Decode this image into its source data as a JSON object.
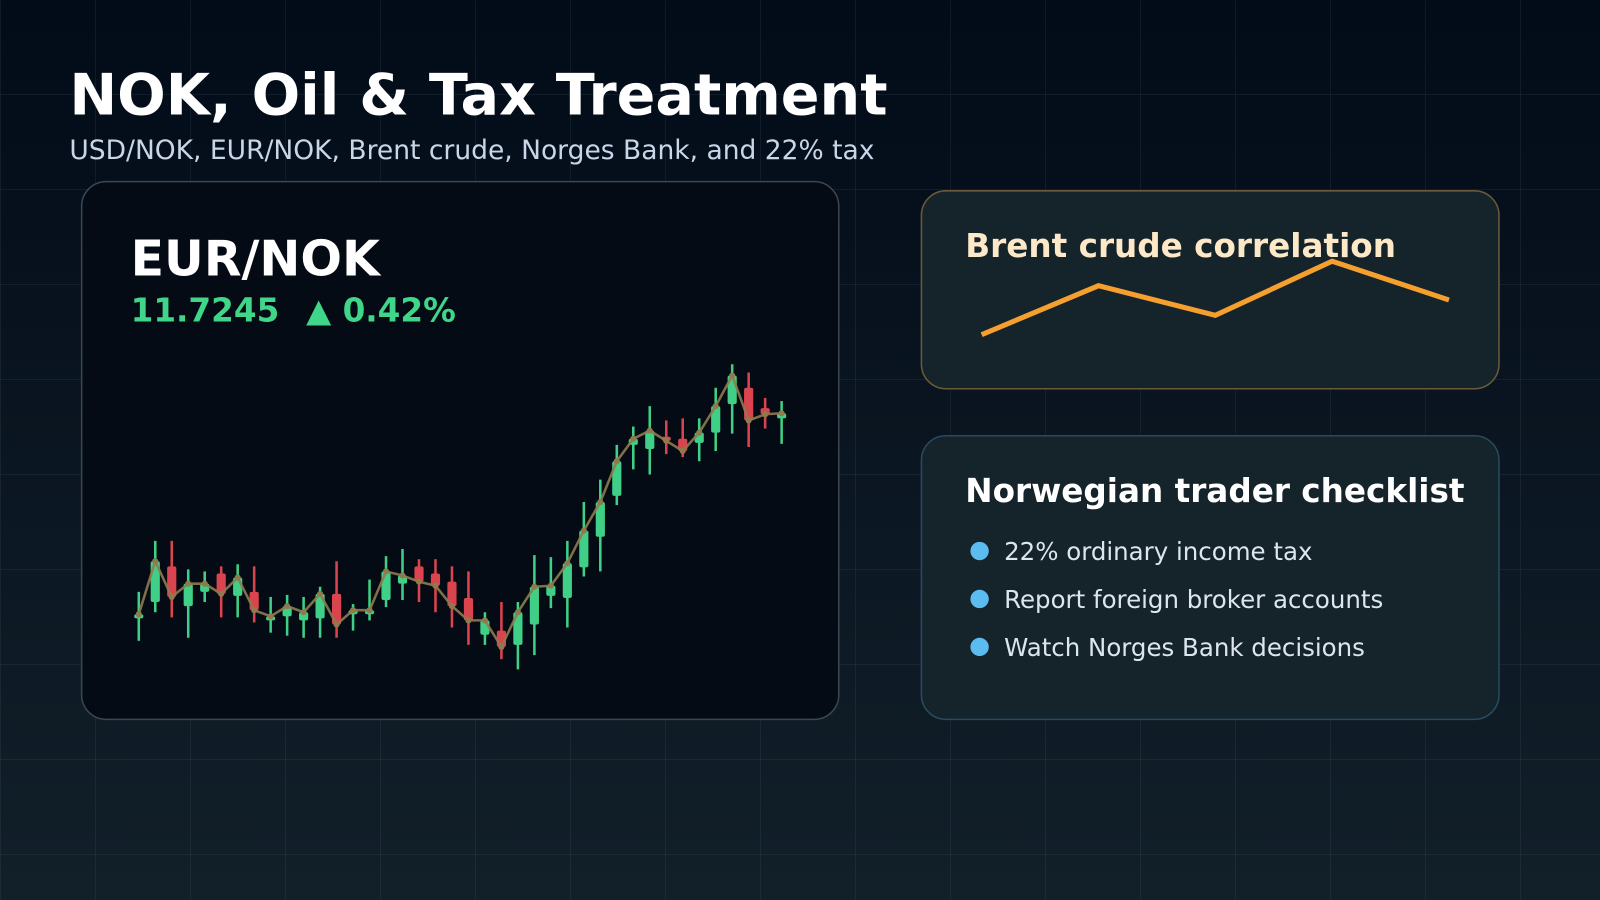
{
  "header": {
    "title": "NOK, Oil & Tax Treatment",
    "subtitle": "USD/NOK, EUR/NOK, Brent crude, Norges Bank, and 22% tax"
  },
  "ticker": {
    "symbol": "EUR/NOK",
    "price": "11.7245",
    "change": "▲ 0.42%"
  },
  "chart_data": [
    {
      "type": "candlestick",
      "up_color": "#3fcf86",
      "down_color": "#d9444f",
      "line_color": "#8f7a4e",
      "candles": [
        {
          "open": 94,
          "high": 120,
          "low": 72,
          "close": 98
        },
        {
          "open": 110,
          "high": 170,
          "low": 100,
          "close": 150
        },
        {
          "open": 145,
          "high": 170,
          "low": 95,
          "close": 115
        },
        {
          "open": 106,
          "high": 142,
          "low": 75,
          "close": 128
        },
        {
          "open": 120,
          "high": 140,
          "low": 110,
          "close": 128
        },
        {
          "open": 138,
          "high": 145,
          "low": 95,
          "close": 118
        },
        {
          "open": 116,
          "high": 147,
          "low": 95,
          "close": 134
        },
        {
          "open": 120,
          "high": 145,
          "low": 90,
          "close": 102
        },
        {
          "open": 92,
          "high": 115,
          "low": 80,
          "close": 96
        },
        {
          "open": 96,
          "high": 117,
          "low": 77,
          "close": 106
        },
        {
          "open": 92,
          "high": 115,
          "low": 75,
          "close": 100
        },
        {
          "open": 94,
          "high": 125,
          "low": 75,
          "close": 118
        },
        {
          "open": 118,
          "high": 150,
          "low": 75,
          "close": 88
        },
        {
          "open": 98,
          "high": 108,
          "low": 82,
          "close": 102
        },
        {
          "open": 98,
          "high": 132,
          "low": 92,
          "close": 102
        },
        {
          "open": 112,
          "high": 155,
          "low": 105,
          "close": 140
        },
        {
          "open": 128,
          "high": 162,
          "low": 112,
          "close": 136
        },
        {
          "open": 145,
          "high": 152,
          "low": 110,
          "close": 130
        },
        {
          "open": 138,
          "high": 152,
          "low": 100,
          "close": 126
        },
        {
          "open": 130,
          "high": 145,
          "low": 85,
          "close": 106
        },
        {
          "open": 114,
          "high": 140,
          "low": 68,
          "close": 92
        },
        {
          "open": 78,
          "high": 100,
          "low": 68,
          "close": 92
        },
        {
          "open": 82,
          "high": 110,
          "low": 54,
          "close": 66
        },
        {
          "open": 68,
          "high": 110,
          "low": 44,
          "close": 100
        },
        {
          "open": 88,
          "high": 156,
          "low": 58,
          "close": 125
        },
        {
          "open": 116,
          "high": 154,
          "low": 104,
          "close": 126
        },
        {
          "open": 114,
          "high": 170,
          "low": 85,
          "close": 148
        },
        {
          "open": 144,
          "high": 208,
          "low": 135,
          "close": 180
        },
        {
          "open": 174,
          "high": 230,
          "low": 140,
          "close": 208
        },
        {
          "open": 214,
          "high": 264,
          "low": 205,
          "close": 248
        },
        {
          "open": 264,
          "high": 282,
          "low": 240,
          "close": 270
        },
        {
          "open": 260,
          "high": 302,
          "low": 235,
          "close": 278
        },
        {
          "open": 272,
          "high": 288,
          "low": 255,
          "close": 268
        },
        {
          "open": 270,
          "high": 290,
          "low": 252,
          "close": 258
        },
        {
          "open": 266,
          "high": 290,
          "low": 248,
          "close": 276
        },
        {
          "open": 276,
          "high": 320,
          "low": 258,
          "close": 302
        },
        {
          "open": 304,
          "high": 343,
          "low": 275,
          "close": 332
        },
        {
          "open": 320,
          "high": 335,
          "low": 262,
          "close": 288
        },
        {
          "open": 300,
          "high": 310,
          "low": 280,
          "close": 294
        },
        {
          "open": 290,
          "high": 307,
          "low": 265,
          "close": 295
        }
      ]
    },
    {
      "type": "line",
      "title": "Brent crude correlation",
      "color": "#f5a02e",
      "values": [
        72,
        120,
        91,
        144,
        106
      ]
    }
  ],
  "checklist": {
    "title": "Norwegian trader checklist",
    "items": [
      "22% ordinary income tax",
      "Report foreign broker accounts",
      "Watch Norges Bank decisions"
    ]
  }
}
